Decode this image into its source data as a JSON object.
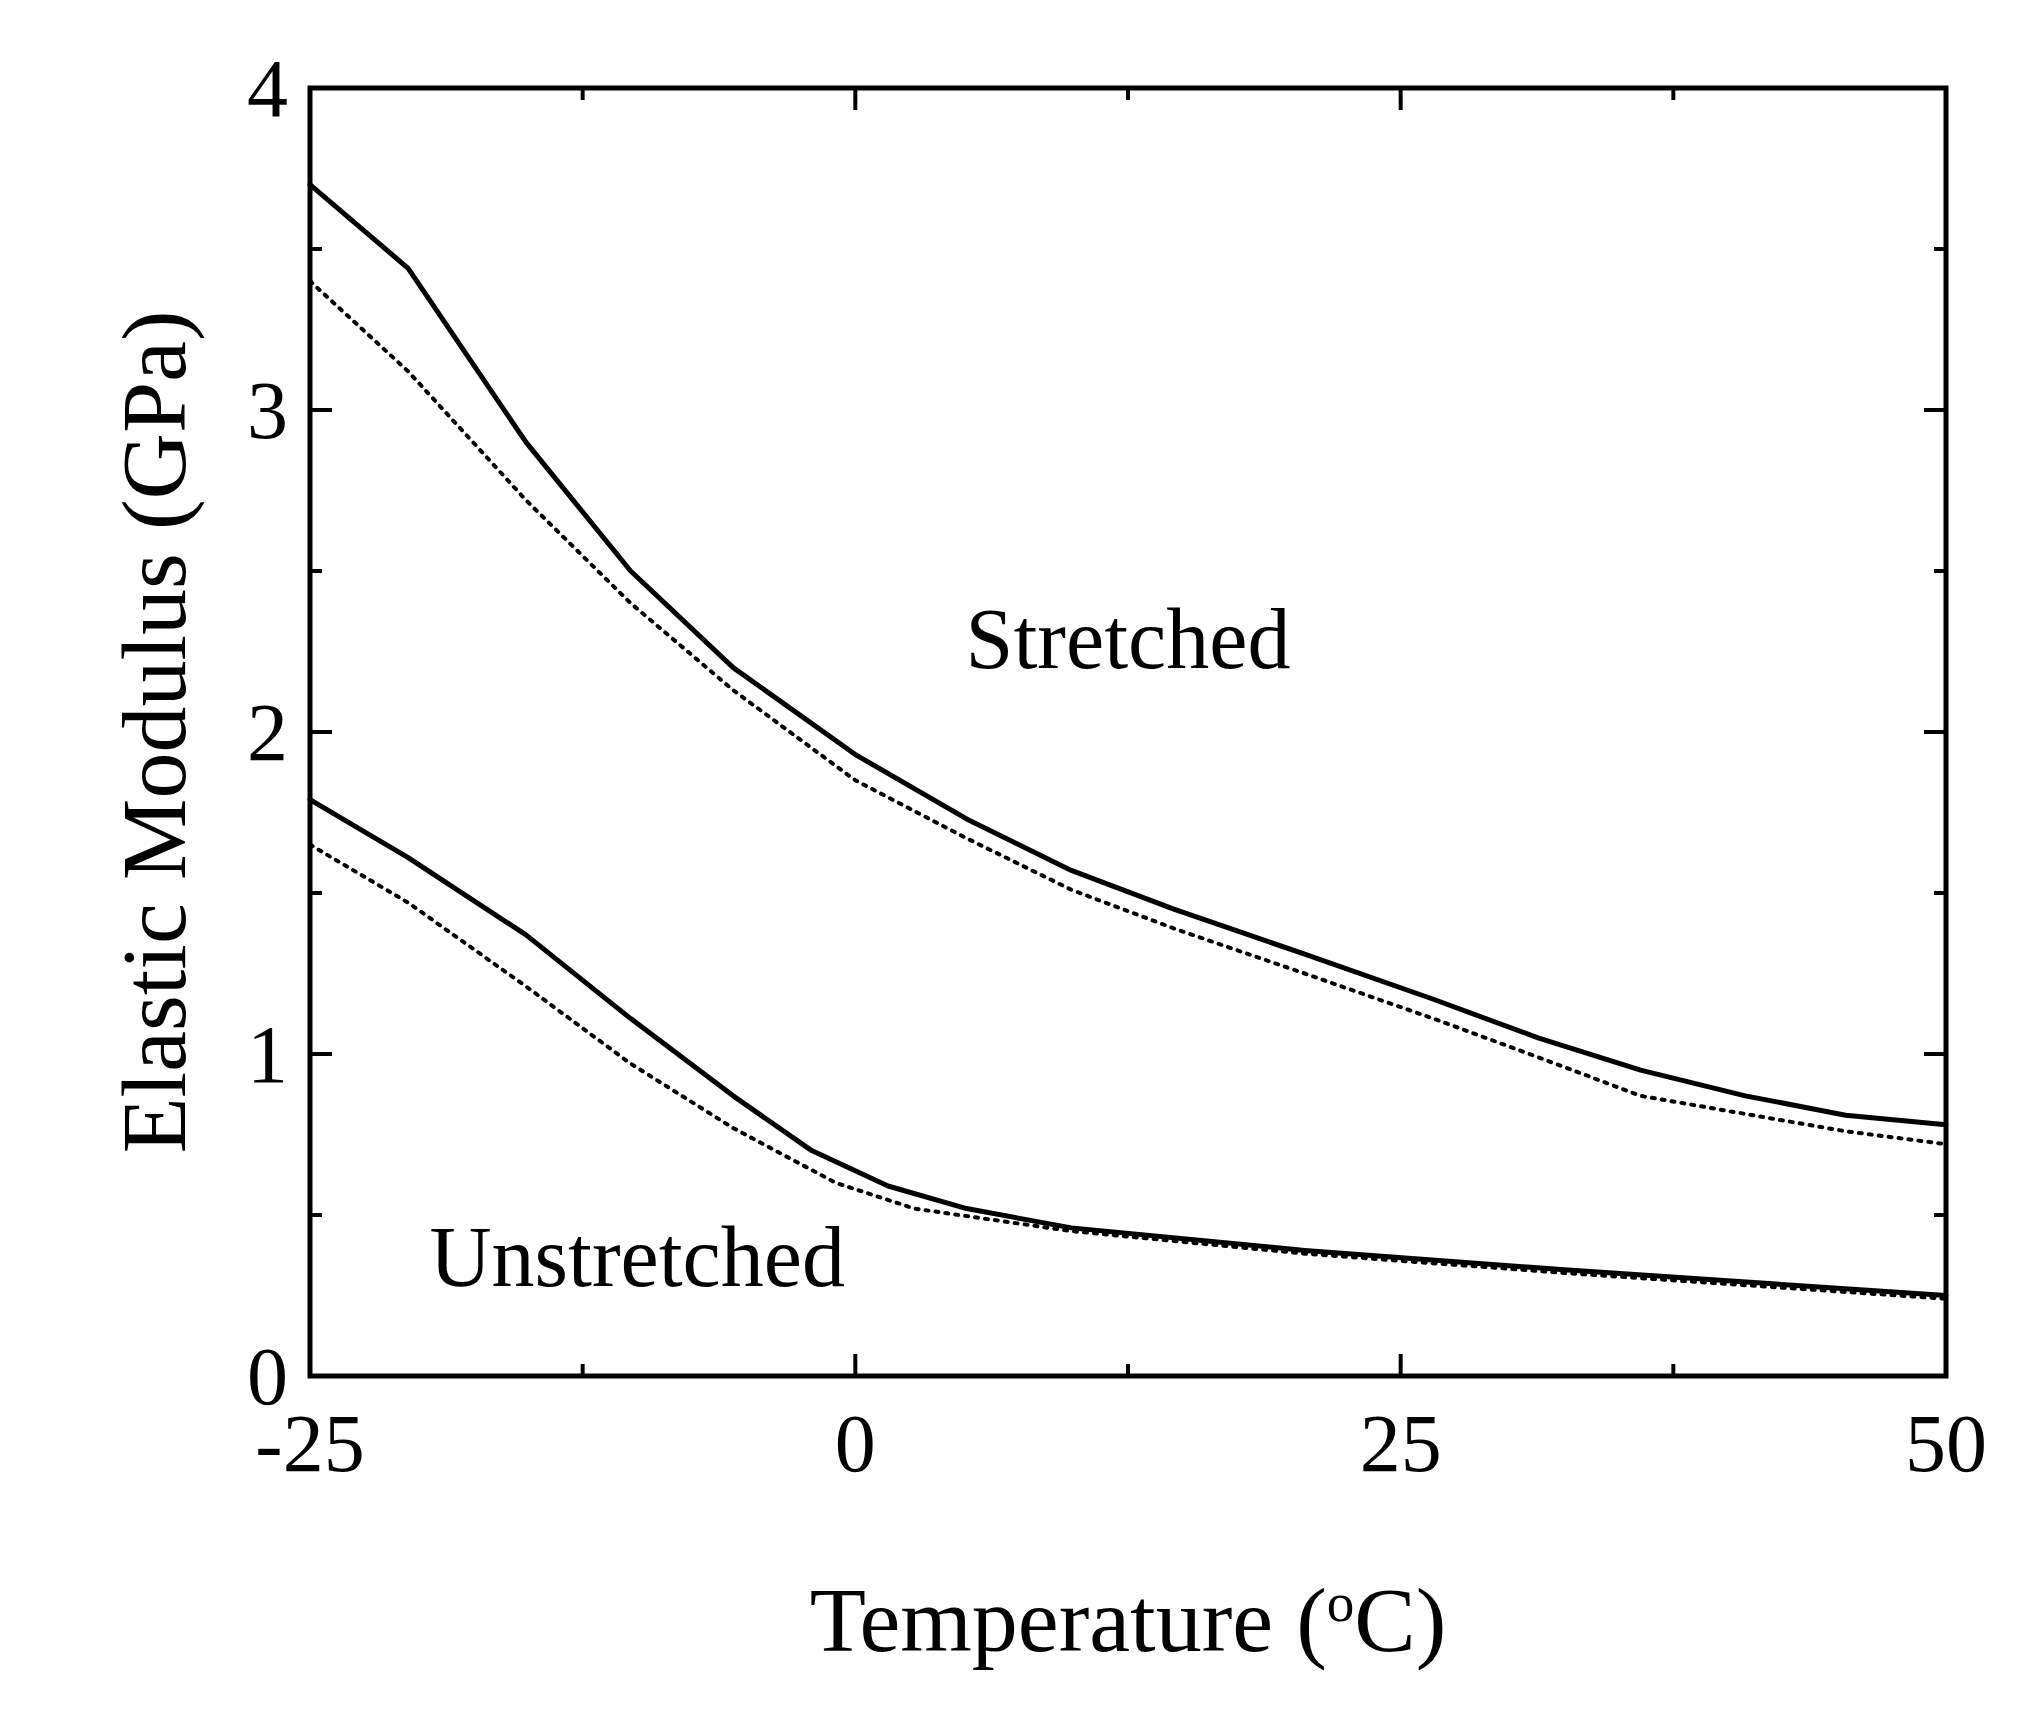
{
  "chart_data": {
    "type": "line",
    "xlabel": "Temperature ($^{o}$C)",
    "ylabel": "Elastic Modulus (GPa)",
    "xlim": [
      -25,
      50
    ],
    "ylim": [
      0,
      4
    ],
    "xticks": [
      -25,
      {
        "value": -12.5,
        "label": null
      },
      0,
      {
        "value": 12.5,
        "label": null
      },
      25,
      {
        "value": 37.5,
        "label": null
      },
      50
    ],
    "yticks": [
      0,
      {
        "value": 0.5,
        "label": null
      },
      1,
      {
        "value": 1.5,
        "label": null
      },
      2,
      {
        "value": 2.5,
        "label": null
      },
      3,
      {
        "value": 3.5,
        "label": null
      },
      4
    ],
    "grid": false,
    "series": [
      {
        "color": "#000000",
        "line_style": "solid",
        "x": [
          -25,
          -20.5,
          -15.1,
          -10.3,
          -5.6,
          0,
          5.1,
          9.9,
          14.6,
          20.6,
          26.5,
          31.3,
          36,
          40.8,
          45.4,
          50
        ],
        "values": [
          3.7,
          3.44,
          2.9,
          2.5,
          2.2,
          1.93,
          1.73,
          1.57,
          1.45,
          1.31,
          1.17,
          1.05,
          0.95,
          0.87,
          0.81,
          0.78
        ]
      },
      {
        "color": "#000000",
        "line_style": "dotted",
        "x": [
          -25,
          -20.5,
          -15.1,
          -10.3,
          -5.6,
          0,
          5.1,
          9.9,
          14.6,
          20.6,
          26.5,
          31.3,
          36,
          45.4,
          50
        ],
        "values": [
          3.4,
          3.12,
          2.72,
          2.4,
          2.13,
          1.85,
          1.67,
          1.51,
          1.39,
          1.25,
          1.11,
          0.99,
          0.87,
          0.76,
          0.72
        ]
      },
      {
        "color": "#000000",
        "line_style": "solid",
        "x": [
          -25,
          -20.5,
          -15.1,
          -10.3,
          -5.6,
          -2,
          1.5,
          5.1,
          9.9,
          20.6,
          32.5,
          50
        ],
        "values": [
          1.79,
          1.61,
          1.37,
          1.11,
          0.87,
          0.7,
          0.59,
          0.52,
          0.46,
          0.39,
          0.33,
          0.25
        ]
      },
      {
        "color": "#000000",
        "line_style": "dotted",
        "x": [
          -25,
          -20.5,
          -15.1,
          -10.3,
          -5.6,
          -0.9,
          2.7,
          9.9,
          20.6,
          32.5,
          50
        ],
        "values": [
          1.65,
          1.47,
          1.21,
          0.97,
          0.77,
          0.6,
          0.52,
          0.45,
          0.38,
          0.32,
          0.24
        ]
      }
    ],
    "annotations": [
      "Stretched",
      "Unstretched"
    ]
  }
}
